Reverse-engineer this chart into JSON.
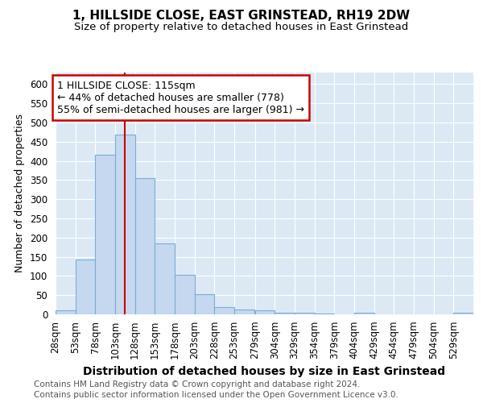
{
  "title": "1, HILLSIDE CLOSE, EAST GRINSTEAD, RH19 2DW",
  "subtitle": "Size of property relative to detached houses in East Grinstead",
  "xlabel": "Distribution of detached houses by size in East Grinstead",
  "ylabel": "Number of detached properties",
  "bin_labels": [
    "28sqm",
    "53sqm",
    "78sqm",
    "103sqm",
    "128sqm",
    "153sqm",
    "178sqm",
    "203sqm",
    "228sqm",
    "253sqm",
    "279sqm",
    "304sqm",
    "329sqm",
    "354sqm",
    "379sqm",
    "404sqm",
    "429sqm",
    "454sqm",
    "479sqm",
    "504sqm",
    "529sqm"
  ],
  "bin_edges": [
    28,
    53,
    78,
    103,
    128,
    153,
    178,
    203,
    228,
    253,
    279,
    304,
    329,
    354,
    379,
    404,
    429,
    454,
    479,
    504,
    529,
    554
  ],
  "bar_heights": [
    10,
    143,
    415,
    468,
    355,
    185,
    103,
    53,
    18,
    13,
    10,
    5,
    4,
    3,
    1,
    4,
    0,
    0,
    0,
    0,
    4
  ],
  "bar_color": "#c5d8ef",
  "bar_edge_color": "#7aadd4",
  "property_size": 115,
  "property_line_color": "#cc0000",
  "annotation_line1": "1 HILLSIDE CLOSE: 115sqm",
  "annotation_line2": "← 44% of detached houses are smaller (778)",
  "annotation_line3": "55% of semi-detached houses are larger (981) →",
  "annotation_box_color": "#ffffff",
  "annotation_box_edge_color": "#cc0000",
  "ylim": [
    0,
    630
  ],
  "yticks": [
    0,
    50,
    100,
    150,
    200,
    250,
    300,
    350,
    400,
    450,
    500,
    550,
    600
  ],
  "footer_line1": "Contains HM Land Registry data © Crown copyright and database right 2024.",
  "footer_line2": "Contains public sector information licensed under the Open Government Licence v3.0.",
  "plot_bg_color": "#dce9f5",
  "fig_bg_color": "#ffffff",
  "grid_color": "#ffffff",
  "title_fontsize": 11,
  "subtitle_fontsize": 9.5,
  "xlabel_fontsize": 10,
  "ylabel_fontsize": 9,
  "tick_fontsize": 8.5,
  "footer_fontsize": 7.5,
  "annotation_fontsize": 9
}
